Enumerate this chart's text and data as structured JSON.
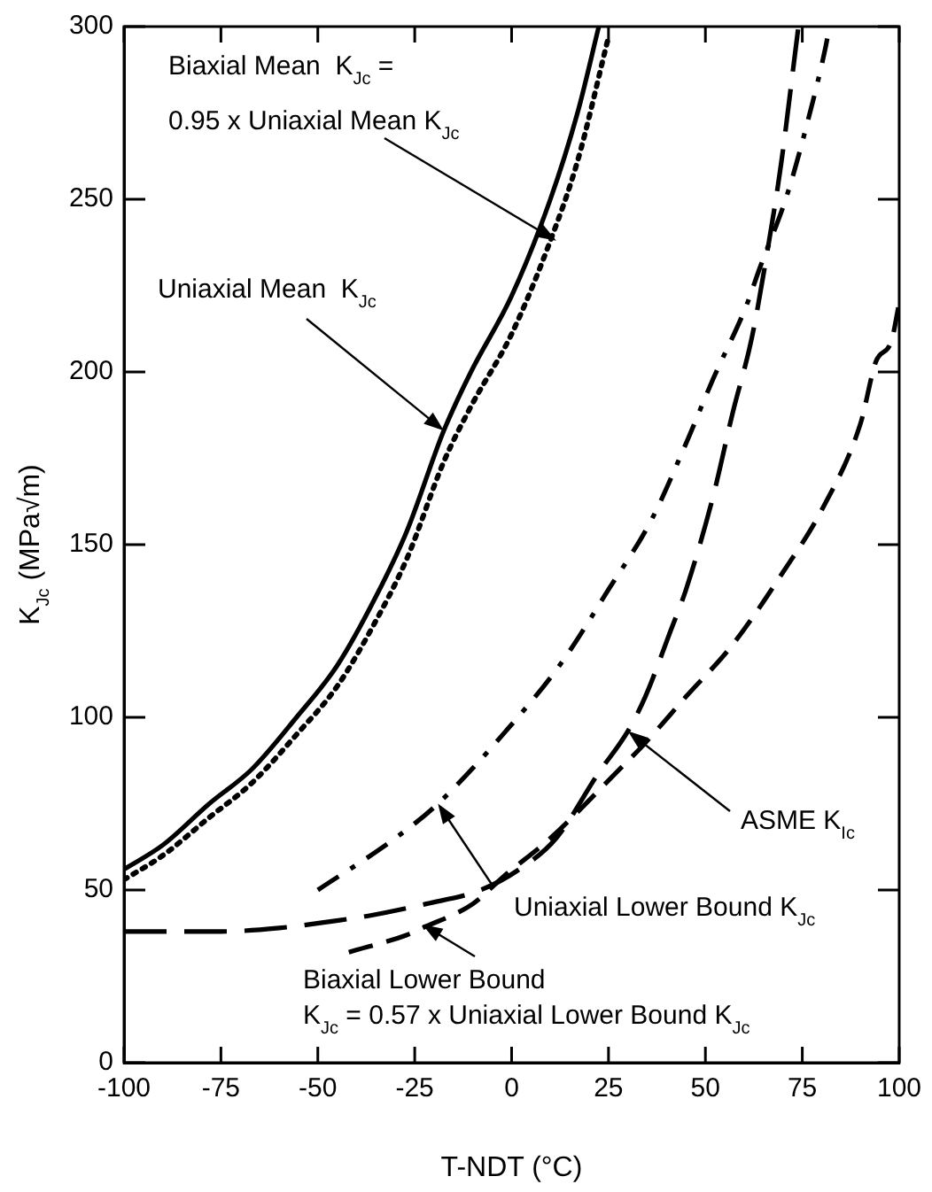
{
  "chart_data": {
    "type": "line",
    "xlabel": "T-NDT (°C)",
    "ylabel": "K$_{Jc}$ (MPa√m)",
    "xlim": [
      -100,
      100
    ],
    "xticks": [
      -100,
      -75,
      -50,
      -25,
      0,
      25,
      50,
      75,
      100
    ],
    "ylim": [
      0,
      300
    ],
    "yticks": [
      0,
      50,
      100,
      150,
      200,
      250,
      300
    ],
    "grid": false,
    "legend": false,
    "marker": "none",
    "series": [
      {
        "color": "#000000",
        "line_style": "solid",
        "x": [
          -100,
          -90,
          -78,
          -67,
          -55.5,
          -45,
          -35,
          -27,
          -17.5,
          -10.5,
          0,
          10,
          17,
          22.5
        ],
        "values": [
          56,
          63,
          75,
          85,
          100,
          115,
          135,
          154,
          183,
          200,
          222,
          250,
          275,
          300
        ]
      },
      {
        "color": "#000000",
        "line_style": "dotted",
        "x": [
          -100,
          -90,
          -78,
          -67,
          -55.5,
          -45,
          -35,
          -27,
          -17.5,
          -10.5,
          0,
          10,
          17,
          25
        ],
        "values": [
          53,
          60,
          71,
          81,
          95,
          109,
          128,
          146,
          174,
          190,
          211,
          238,
          261,
          297
        ]
      },
      {
        "color": "#000000",
        "line_style": "dashdot",
        "x": [
          -50,
          -30,
          -19,
          -1.5,
          13,
          25,
          36,
          44.5,
          52,
          60.5,
          64,
          71,
          76.5,
          81,
          82
        ],
        "values": [
          50,
          65,
          75,
          96,
          116,
          137,
          157,
          178,
          198,
          219,
          230,
          251,
          273,
          294,
          300
        ]
      },
      {
        "color": "#000000",
        "line_style": "longdash",
        "x": [
          -100,
          -75,
          -60,
          -46,
          -37,
          -22,
          -8,
          2,
          11.5,
          22.5,
          30,
          34.5,
          41,
          45,
          52,
          57,
          62,
          66,
          69.5,
          73,
          74
        ],
        "values": [
          38,
          38,
          39,
          41,
          42.5,
          46,
          50,
          56,
          65,
          84,
          96,
          106,
          125,
          137,
          164,
          188,
          210,
          235,
          260,
          291,
          300
        ]
      },
      {
        "color": "#000000",
        "line_style": "dashed",
        "x": [
          -42,
          -27,
          -23,
          -10,
          -2,
          10,
          27,
          34,
          45,
          57,
          70,
          80,
          90,
          94,
          98,
          100
        ],
        "values": [
          32,
          37,
          39,
          46,
          54,
          65,
          84,
          92,
          106,
          121,
          142,
          160,
          185,
          203,
          209,
          220
        ]
      }
    ],
    "annotations": [
      {
        "text": "Biaxial Mean  K$_{Jc}$ =\n0.95 x Uniaxial Mean K$_{Jc}$",
        "x": 11.5,
        "y": 238
      },
      {
        "text": "Uniaxial Mean  K$_{Jc}$",
        "x": -17.5,
        "y": 183
      },
      {
        "text": "ASME K$_{Ic}$",
        "x": 30,
        "y": 96
      },
      {
        "text": "Uniaxial Lower Bound K$_{Jc}$",
        "x": -19,
        "y": 75
      },
      {
        "text": "Biaxial Lower Bound\nK$_{Jc}$ = 0.57 x Uniaxial Lower Bound K$_{Jc}$",
        "x": -23,
        "y": 40
      }
    ]
  }
}
